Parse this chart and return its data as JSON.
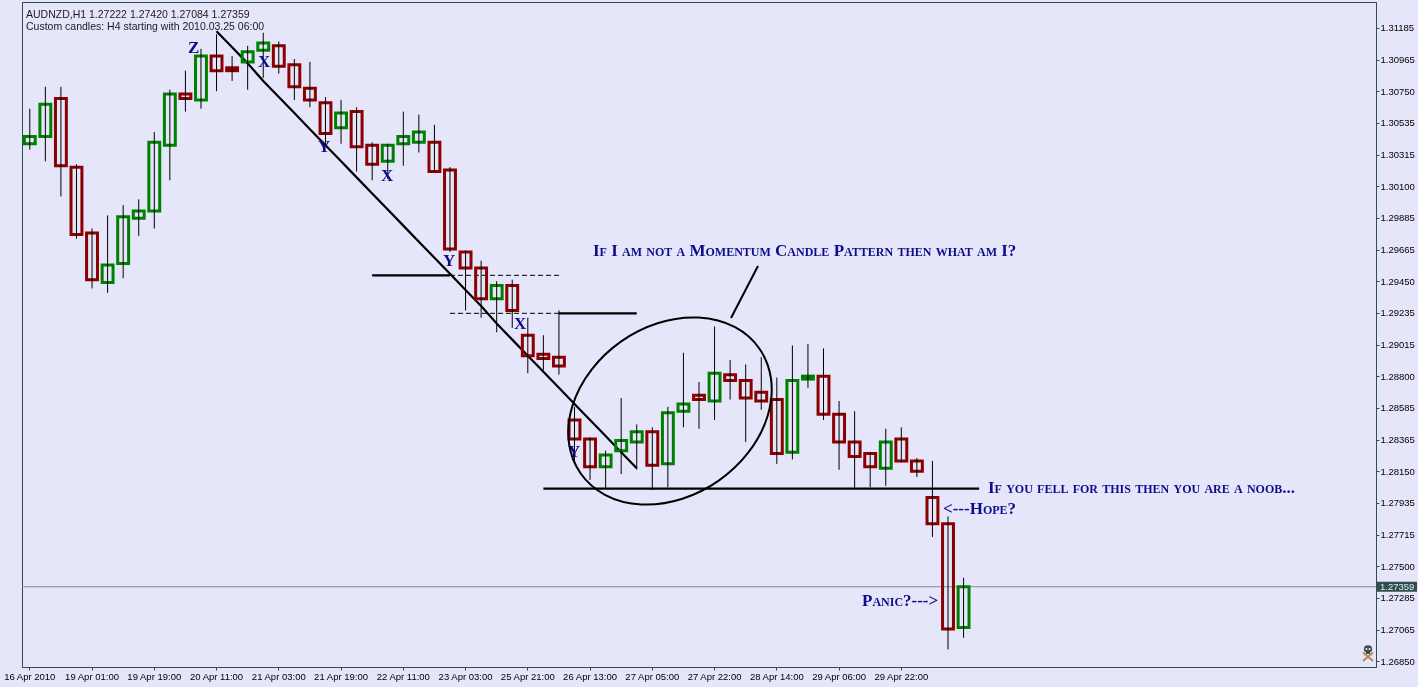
{
  "chart_data": {
    "type": "candlestick",
    "title": "AUDNZD,H1 1.27222 1.27420 1.27084 1.27359",
    "subtitle": "Custom candles: H4 starting with 2010.03.25 06:00",
    "categories": [
      "16 Apr 2010",
      null,
      null,
      null,
      "19 Apr 01:00",
      null,
      null,
      null,
      "19 Apr 19:00",
      null,
      null,
      null,
      "20 Apr 11:00",
      null,
      null,
      null,
      "21 Apr 03:00",
      null,
      null,
      null,
      "21 Apr 19:00",
      null,
      null,
      null,
      "22 Apr 11:00",
      null,
      null,
      null,
      "23 Apr 03:00",
      null,
      null,
      null,
      "25 Apr 21:00",
      null,
      null,
      null,
      "26 Apr 13:00",
      null,
      null,
      null,
      "27 Apr 05:00",
      null,
      null,
      null,
      "27 Apr 22:00",
      null,
      null,
      null,
      "28 Apr 14:00",
      null,
      null,
      null,
      "29 Apr 06:00",
      null,
      null,
      null,
      "29 Apr 22:00",
      null,
      null,
      null,
      null,
      null,
      null,
      null,
      null,
      null,
      null,
      null,
      null,
      null,
      null,
      null,
      null,
      null,
      null,
      null,
      null,
      null,
      null,
      null,
      null,
      null,
      null,
      null,
      null,
      null,
      null
    ],
    "ohlc": [
      [
        1.3039,
        1.3063,
        1.3035,
        1.3044
      ],
      [
        1.3044,
        1.3078,
        1.3027,
        1.3066
      ],
      [
        1.307,
        1.3078,
        1.3003,
        1.3024
      ],
      [
        1.3023,
        1.3025,
        1.2974,
        1.2977
      ],
      [
        1.2978,
        1.2981,
        1.294,
        1.2946
      ],
      [
        1.2944,
        1.299,
        1.2937,
        1.2956
      ],
      [
        1.2957,
        1.2997,
        1.2947,
        1.2989
      ],
      [
        1.2988,
        1.3001,
        1.2976,
        1.2993
      ],
      [
        1.2993,
        1.3047,
        1.2981,
        1.304
      ],
      [
        1.3038,
        1.3076,
        1.3014,
        1.3073
      ],
      [
        1.3073,
        1.3089,
        1.3061,
        1.307
      ],
      [
        1.3069,
        1.3104,
        1.3063,
        1.3099
      ],
      [
        1.3099,
        1.3114,
        1.3075,
        1.3089
      ],
      [
        1.3091,
        1.3099,
        1.3082,
        1.3089
      ],
      [
        1.3095,
        1.3106,
        1.3076,
        1.3102
      ],
      [
        1.3103,
        1.3115,
        1.3084,
        1.3108
      ],
      [
        1.3106,
        1.3109,
        1.3087,
        1.3092
      ],
      [
        1.3093,
        1.3097,
        1.3069,
        1.3078
      ],
      [
        1.3077,
        1.3095,
        1.3064,
        1.3069
      ],
      [
        1.3067,
        1.3071,
        1.3038,
        1.3046
      ],
      [
        1.305,
        1.3069,
        1.3039,
        1.306
      ],
      [
        1.3061,
        1.3064,
        1.302,
        1.3037
      ],
      [
        1.3038,
        1.304,
        1.3014,
        1.3025
      ],
      [
        1.3027,
        1.3039,
        1.3015,
        1.3038
      ],
      [
        1.3039,
        1.3061,
        1.3024,
        1.3044
      ],
      [
        1.304,
        1.3059,
        1.3033,
        1.3047
      ],
      [
        1.304,
        1.3052,
        1.302,
        1.302
      ],
      [
        1.3021,
        1.3023,
        1.2965,
        1.2967
      ],
      [
        1.2965,
        1.2966,
        1.2925,
        1.2954
      ],
      [
        1.2954,
        1.2959,
        1.292,
        1.2933
      ],
      [
        1.2933,
        1.2945,
        1.291,
        1.2942
      ],
      [
        1.2942,
        1.2946,
        1.2913,
        1.2925
      ],
      [
        1.2908,
        1.292,
        1.2882,
        1.2894
      ],
      [
        1.2895,
        1.2908,
        1.2884,
        1.2892
      ],
      [
        1.2893,
        1.2925,
        1.2881,
        1.2887
      ],
      [
        1.285,
        1.2859,
        1.2822,
        1.2837
      ],
      [
        1.2837,
        1.2838,
        1.2809,
        1.2818
      ],
      [
        1.2818,
        1.2829,
        1.2803,
        1.2826
      ],
      [
        1.2829,
        1.2865,
        1.2813,
        1.2836
      ],
      [
        1.2835,
        1.2847,
        1.2816,
        1.2842
      ],
      [
        1.2842,
        1.2845,
        1.2802,
        1.2819
      ],
      [
        1.282,
        1.2859,
        1.2804,
        1.2855
      ],
      [
        1.2856,
        1.2896,
        1.2845,
        1.2861
      ],
      [
        1.2867,
        1.2876,
        1.2844,
        1.2864
      ],
      [
        1.2863,
        1.2914,
        1.285,
        1.2882
      ],
      [
        1.2881,
        1.2891,
        1.2864,
        1.2877
      ],
      [
        1.2877,
        1.2888,
        1.2835,
        1.2865
      ],
      [
        1.2869,
        1.2893,
        1.2857,
        1.2863
      ],
      [
        1.2864,
        1.2879,
        1.282,
        1.2827
      ],
      [
        1.2828,
        1.2901,
        1.2823,
        1.2877
      ],
      [
        1.2878,
        1.2902,
        1.2872,
        1.288
      ],
      [
        1.288,
        1.2899,
        1.285,
        1.2854
      ],
      [
        1.2854,
        1.2863,
        1.2816,
        1.2835
      ],
      [
        1.2835,
        1.2856,
        1.2803,
        1.2825
      ],
      [
        1.2827,
        1.2828,
        1.2804,
        1.2818
      ],
      [
        1.2817,
        1.2844,
        1.2805,
        1.2835
      ],
      [
        1.2837,
        1.2845,
        1.2821,
        1.2822
      ],
      [
        1.2822,
        1.2824,
        1.2811,
        1.2815
      ],
      [
        1.2797,
        1.2822,
        1.277,
        1.2779
      ],
      [
        1.2779,
        1.2784,
        1.2693,
        1.2707
      ],
      [
        1.2708,
        1.2742,
        1.2701,
        1.27359
      ],
      null,
      null,
      null,
      null,
      null,
      null,
      null,
      null,
      null,
      null,
      null,
      null,
      null,
      null,
      null,
      null,
      null,
      null,
      null,
      null,
      null,
      null,
      null,
      null,
      null,
      null
    ],
    "colors": [
      "#008000",
      "#008000",
      "#8b0000",
      "#8b0000",
      "#8b0000",
      "#008000",
      "#008000",
      "#008000",
      "#008000",
      "#008000",
      "#8b0000",
      "#008000",
      "#8b0000",
      "#8b0000",
      "#008000",
      "#008000",
      "#8b0000",
      "#8b0000",
      "#8b0000",
      "#8b0000",
      "#008000",
      "#8b0000",
      "#8b0000",
      "#008000",
      "#008000",
      "#008000",
      "#8b0000",
      "#8b0000",
      "#8b0000",
      "#8b0000",
      "#008000",
      "#8b0000",
      "#8b0000",
      "#8b0000",
      "#8b0000",
      "#8b0000",
      "#8b0000",
      "#008000",
      "#008000",
      "#008000",
      "#8b0000",
      "#008000",
      "#008000",
      "#8b0000",
      "#008000",
      "#8b0000",
      "#8b0000",
      "#8b0000",
      "#8b0000",
      "#008000",
      "#008000",
      "#8b0000",
      "#8b0000",
      "#8b0000",
      "#8b0000",
      "#008000",
      "#8b0000",
      "#8b0000",
      "#8b0000",
      "#8b0000",
      "#008000",
      null,
      null,
      null,
      null,
      null,
      null,
      null,
      null,
      null,
      null,
      null,
      null,
      null,
      null,
      null,
      null,
      null,
      null,
      null,
      null,
      null,
      null,
      null,
      null,
      null,
      null
    ],
    "series": [
      {
        "type": "line",
        "color": "#000000",
        "values": [
          null,
          null,
          null,
          null,
          null,
          null,
          null,
          null,
          null,
          null,
          null,
          null,
          1.3116,
          1.3105,
          1.3094,
          1.3082,
          1.3071,
          1.306,
          1.3049,
          1.3038,
          1.3027,
          1.3016,
          1.3005,
          1.2994,
          1.2983,
          1.2972,
          1.2961,
          1.295,
          1.2939,
          1.2928,
          1.2916,
          1.2905,
          1.2894,
          1.2883,
          1.2872,
          1.2861,
          1.285,
          1.2839,
          1.2828,
          1.2817,
          null,
          null,
          null,
          null,
          null,
          null,
          null,
          null,
          null,
          null,
          null,
          null,
          null,
          null,
          null,
          null,
          null,
          null,
          null,
          null,
          null,
          null,
          null,
          null,
          null,
          null,
          null,
          null,
          null,
          null,
          null,
          null,
          null,
          null,
          null,
          null,
          null,
          null,
          null,
          null,
          null,
          null,
          null,
          null,
          null,
          null,
          null
        ]
      },
      {
        "type": "line",
        "color": "#000000",
        "values": [
          null,
          null,
          null,
          null,
          null,
          null,
          null,
          null,
          null,
          null,
          null,
          null,
          null,
          null,
          null,
          null,
          null,
          null,
          null,
          null,
          null,
          null,
          null,
          null,
          null,
          null,
          null,
          null,
          null,
          null,
          null,
          null,
          null,
          1.2803,
          1.2803,
          1.2803,
          1.2803,
          1.2803,
          1.2803,
          1.2803,
          1.2803,
          1.2803,
          1.2803,
          1.2803,
          1.2803,
          1.2803,
          1.2803,
          1.2803,
          1.2803,
          1.2803,
          1.2803,
          1.2803,
          1.2803,
          1.2803,
          1.2803,
          1.2803,
          1.2803,
          1.2803,
          1.2803,
          1.2803,
          1.2803,
          1.2803,
          null,
          null,
          null,
          null,
          null,
          null,
          null,
          null,
          null,
          null,
          null,
          null,
          null,
          null,
          null,
          null,
          null,
          null,
          null,
          null,
          null,
          null,
          null,
          null,
          null
        ]
      },
      {
        "type": "line",
        "color": "#000000",
        "values": [
          null,
          null,
          null,
          null,
          null,
          null,
          null,
          null,
          null,
          null,
          null,
          null,
          null,
          null,
          null,
          null,
          null,
          null,
          null,
          null,
          null,
          null,
          1.2949,
          1.2949,
          1.2949,
          1.2949,
          1.2949,
          1.2949,
          null,
          null,
          null,
          null,
          null,
          null,
          null,
          null,
          null,
          null,
          null,
          null,
          null,
          null,
          null,
          null,
          null,
          null,
          null,
          null,
          null,
          null,
          null,
          null,
          null,
          null,
          null,
          null,
          null,
          null,
          null,
          null,
          null,
          null,
          null,
          null,
          null,
          null,
          null,
          null,
          null,
          null,
          null,
          null,
          null,
          null,
          null,
          null,
          null,
          null,
          null,
          null,
          null,
          null,
          null,
          null,
          null,
          null,
          null
        ]
      },
      {
        "type": "line",
        "color": "#000000",
        "line_style": "dashed",
        "values": [
          null,
          null,
          null,
          null,
          null,
          null,
          null,
          null,
          null,
          null,
          null,
          null,
          null,
          null,
          null,
          null,
          null,
          null,
          null,
          null,
          null,
          null,
          null,
          null,
          null,
          null,
          null,
          1.2949,
          1.2949,
          1.2949,
          1.2949,
          1.2949,
          1.2949,
          1.2949,
          1.2949,
          null,
          null,
          null,
          null,
          null,
          null,
          null,
          null,
          null,
          null,
          null,
          null,
          null,
          null,
          null,
          null,
          null,
          null,
          null,
          null,
          null,
          null,
          null,
          null,
          null,
          null,
          null,
          null,
          null,
          null,
          null,
          null,
          null,
          null,
          null,
          null,
          null,
          null,
          null,
          null,
          null,
          null,
          null,
          null,
          null,
          null,
          null,
          null,
          null,
          null,
          null,
          null
        ]
      },
      {
        "type": "line",
        "color": "#000000",
        "values": [
          null,
          null,
          null,
          null,
          null,
          null,
          null,
          null,
          null,
          null,
          null,
          null,
          null,
          null,
          null,
          null,
          null,
          null,
          null,
          null,
          null,
          null,
          null,
          null,
          null,
          null,
          null,
          null,
          null,
          null,
          null,
          null,
          null,
          null,
          1.2923,
          1.2923,
          1.2923,
          1.2923,
          1.2923,
          1.2923,
          null,
          null,
          null,
          null,
          null,
          null,
          null,
          null,
          null,
          null,
          null,
          null,
          null,
          null,
          null,
          null,
          null,
          null,
          null,
          null,
          null,
          null,
          null,
          null,
          null,
          null,
          null,
          null,
          null,
          null,
          null,
          null,
          null,
          null,
          null,
          null,
          null,
          null,
          null,
          null,
          null,
          null,
          null,
          null,
          null,
          null,
          null
        ]
      },
      {
        "type": "line",
        "color": "#000000",
        "line_style": "dashed",
        "values": [
          null,
          null,
          null,
          null,
          null,
          null,
          null,
          null,
          null,
          null,
          null,
          null,
          null,
          null,
          null,
          null,
          null,
          null,
          null,
          null,
          null,
          null,
          null,
          null,
          null,
          null,
          null,
          1.2923,
          1.2923,
          1.2923,
          1.2923,
          1.2923,
          1.2923,
          1.2923,
          1.2923,
          null,
          null,
          null,
          null,
          null,
          null,
          null,
          null,
          null,
          null,
          null,
          null,
          null,
          null,
          null,
          null,
          null,
          null,
          null,
          null,
          null,
          null,
          null,
          null,
          null,
          null,
          null,
          null,
          null,
          null,
          null,
          null,
          null,
          null,
          null,
          null,
          null,
          null,
          null,
          null,
          null,
          null,
          null,
          null,
          null,
          null,
          null,
          null,
          null,
          null,
          null,
          null
        ]
      }
    ],
    "ref_lines": [
      {
        "axis": "y",
        "value": 1.27359,
        "label": "1.27359",
        "color": "#7f8c99"
      }
    ],
    "annotations": [
      "Z",
      "X",
      "Y",
      "X",
      "Y",
      "X",
      "Y",
      "If I am not a Momentum Candle Pattern then what am I?",
      "If you fell for this then you are a noob...",
      "<---Hope?",
      "Panic?--->"
    ],
    "ylim": [
      1.2681,
      1.3136
    ],
    "yticks": [
      {
        "value": 1.2685,
        "label": "1.26850"
      },
      1.27065,
      1.27285,
      {
        "value": 1.275,
        "label": "1.27500"
      },
      1.27715,
      1.27935,
      {
        "value": 1.2815,
        "label": "1.28150"
      },
      1.28365,
      1.28585,
      {
        "value": 1.288,
        "label": "1.28800"
      },
      1.29015,
      1.29235,
      {
        "value": 1.2945,
        "label": "1.29450"
      },
      1.29665,
      1.29885,
      {
        "value": 1.301,
        "label": "1.30100"
      },
      1.30315,
      1.30535,
      {
        "value": 1.3075,
        "label": "1.30750"
      },
      1.30965,
      1.31185
    ]
  }
}
